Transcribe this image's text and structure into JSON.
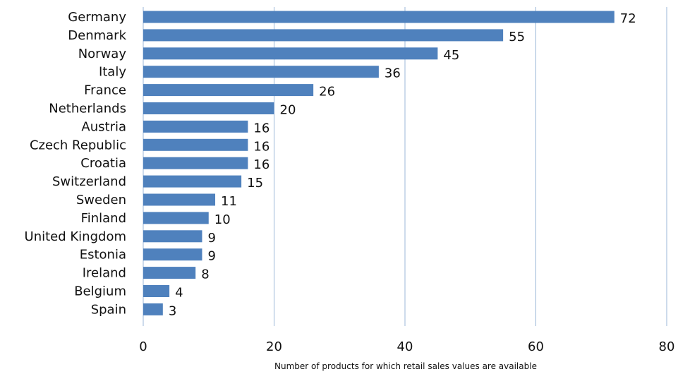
{
  "chart_data": {
    "type": "bar",
    "orientation": "horizontal",
    "categories": [
      "Germany",
      "Denmark",
      "Norway",
      "Italy",
      "France",
      "Netherlands",
      "Austria",
      "Czech Republic",
      "Croatia",
      "Switzerland",
      "Sweden",
      "Finland",
      "United Kingdom",
      "Estonia",
      "Ireland",
      "Belgium",
      "Spain"
    ],
    "values": [
      72,
      55,
      45,
      36,
      26,
      20,
      16,
      16,
      16,
      15,
      11,
      10,
      9,
      9,
      8,
      4,
      3
    ],
    "title": "",
    "xlabel": "Number of products for which retail sales values are available",
    "ylabel": "",
    "xlim": [
      0,
      80
    ],
    "xticks": [
      0,
      20,
      40,
      60,
      80
    ],
    "grid": "vertical",
    "data_labels": true,
    "bar_color": "#4F81BD",
    "grid_color": "#9BB7D8"
  }
}
